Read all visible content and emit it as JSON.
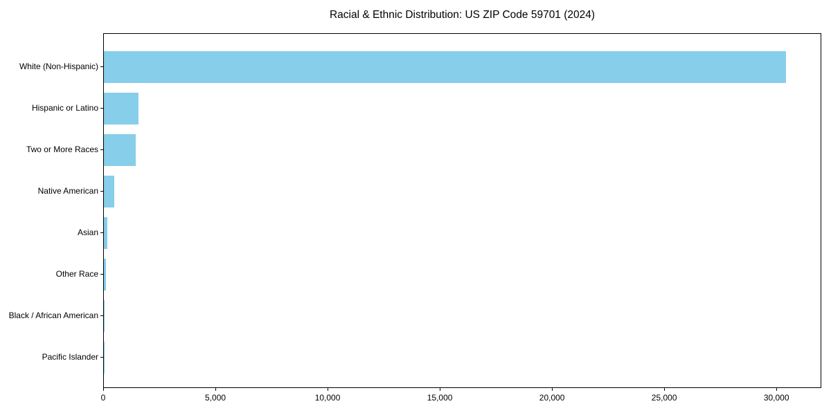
{
  "chart_data": {
    "type": "bar",
    "orientation": "horizontal",
    "title": "Racial & Ethnic Distribution: US ZIP Code 59701 (2024)",
    "categories": [
      "White (Non-Hispanic)",
      "Hispanic or Latino",
      "Two or More Races",
      "Native American",
      "Asian",
      "Other Race",
      "Black / African American",
      "Pacific Islander"
    ],
    "values": [
      30460,
      1540,
      1420,
      460,
      140,
      80,
      20,
      5
    ],
    "xlabel": "",
    "ylabel": "",
    "xlim": [
      0,
      32000
    ],
    "x_ticks": [
      0,
      5000,
      10000,
      15000,
      20000,
      25000,
      30000
    ],
    "x_tick_labels": [
      "0",
      "5,000",
      "10,000",
      "15,000",
      "20,000",
      "25,000",
      "30,000"
    ],
    "bar_color": "#87CEEB",
    "spine_color": "#000000",
    "grid": false,
    "legend": false
  }
}
